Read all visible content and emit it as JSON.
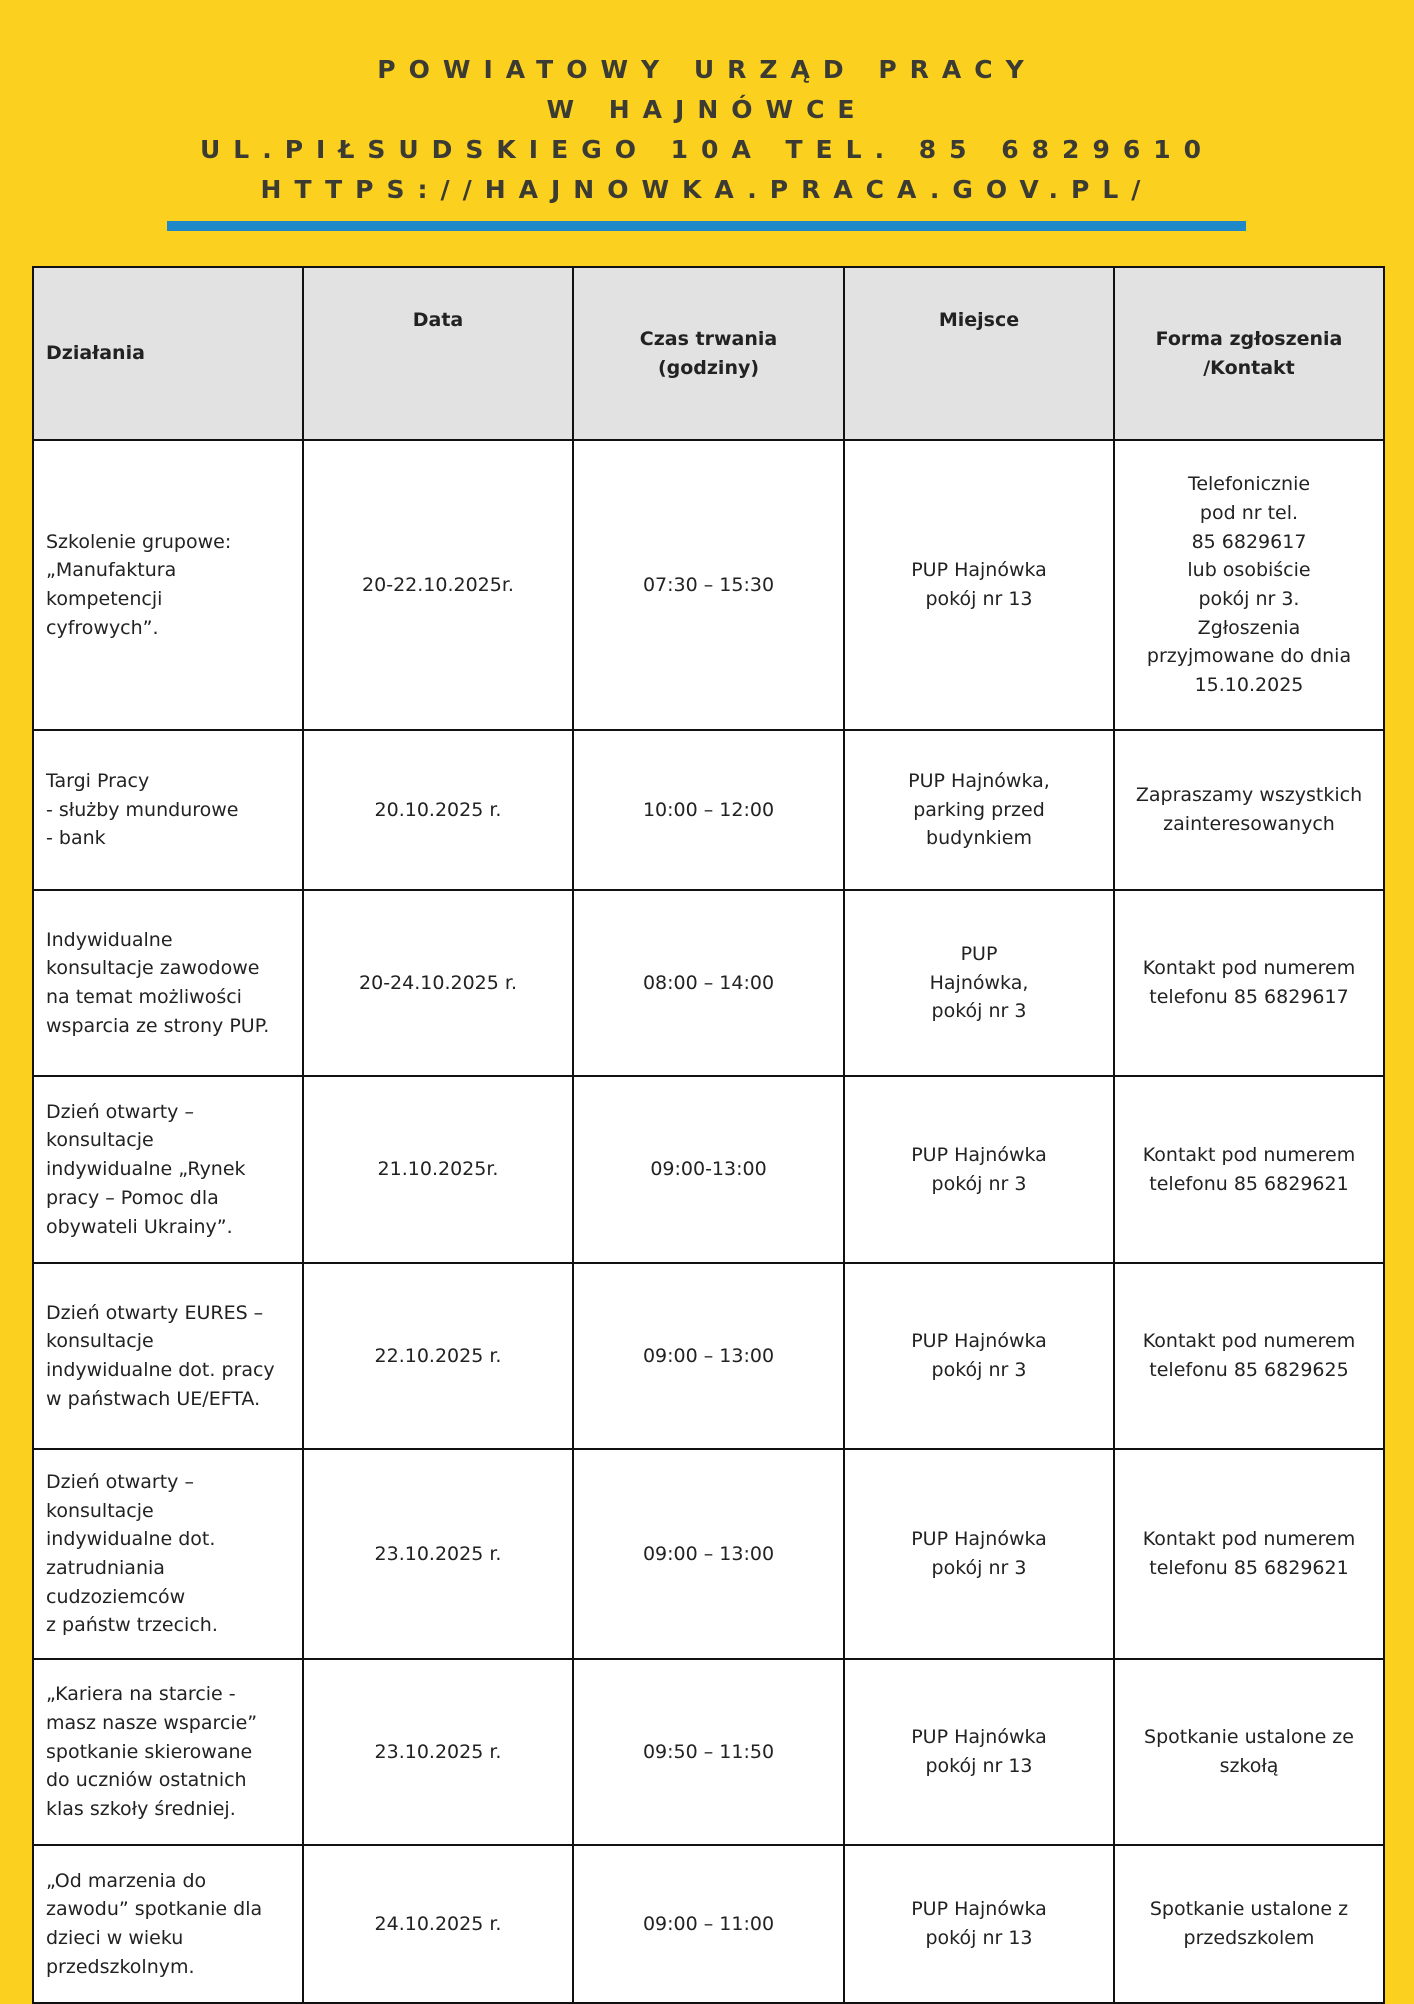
{
  "header": {
    "lines": [
      "POWIATOWY URZĄD PRACY",
      "W HAJNÓWCE",
      "UL.PIŁSUDSKIEGO 10A TEL. 85 6829610",
      "HTTPS://HAJNOWKA.PRACA.GOV.PL/"
    ]
  },
  "colors": {
    "background": "#fbd01e",
    "accent_bar": "#1e88c8",
    "header_row": "#e2e2e2"
  },
  "table": {
    "headers": [
      "Działania",
      "Data",
      "Czas trwania (godziny)",
      "Miejsce",
      "Forma zgłoszenia\n/Kontakt"
    ],
    "rows": [
      [
        "Szkolenie grupowe:\n„Manufaktura\nkompetencji\ncyfrowych”.",
        "20-22.10.2025r.",
        "07:30 – 15:30",
        "PUP Hajnówka\npokój nr 13",
        "Telefonicznie\npod nr tel.\n85 6829617\nlub osobiście\npokój nr 3.\nZgłoszenia\nprzyjmowane do dnia\n15.10.2025"
      ],
      [
        "Targi Pracy\n- służby mundurowe\n- bank",
        "20.10.2025 r.",
        "10:00 – 12:00",
        "PUP Hajnówka,\nparking przed\nbudynkiem",
        "Zapraszamy wszystkich\nzainteresowanych"
      ],
      [
        "Indywidualne\nkonsultacje zawodowe\nna temat możliwości\nwsparcia ze strony PUP.",
        "20-24.10.2025 r.",
        "08:00 – 14:00",
        "PUP\nHajnówka,\npokój nr 3",
        "Kontakt pod numerem\ntelefonu 85 6829617"
      ],
      [
        "Dzień otwarty –\nkonsultacje\nindywidualne „Rynek\npracy – Pomoc dla\nobywateli Ukrainy”.",
        "21.10.2025r.",
        "09:00-13:00",
        "PUP Hajnówka\npokój nr 3",
        "Kontakt pod numerem\ntelefonu 85 6829621"
      ],
      [
        "Dzień otwarty EURES –\nkonsultacje\nindywidualne dot. pracy\nw państwach UE/EFTA.",
        "22.10.2025 r.",
        "09:00 – 13:00",
        "PUP Hajnówka\npokój nr 3",
        "Kontakt pod numerem\ntelefonu 85 6829625"
      ],
      [
        "Dzień otwarty –\nkonsultacje\nindywidualne dot.\nzatrudniania\ncudzoziemców\nz państw trzecich.",
        "23.10.2025 r.",
        "09:00 – 13:00",
        "PUP Hajnówka\npokój nr 3",
        "Kontakt pod numerem\ntelefonu 85 6829621"
      ],
      [
        "„Kariera na starcie -\nmasz nasze wsparcie”\nspotkanie skierowane\ndo uczniów ostatnich\nklas szkoły średniej.",
        "23.10.2025 r.",
        "09:50 – 11:50",
        "PUP Hajnówka\npokój nr 13",
        "Spotkanie ustalone ze\nszkołą"
      ],
      [
        "„Od marzenia do\nzawodu” spotkanie dla\ndzieci w wieku\nprzedszkolnym.",
        "24.10.2025 r.",
        "09:00 – 11:00",
        "PUP Hajnówka\npokój nr 13",
        "Spotkanie ustalone z\nprzedszkolem"
      ]
    ]
  }
}
